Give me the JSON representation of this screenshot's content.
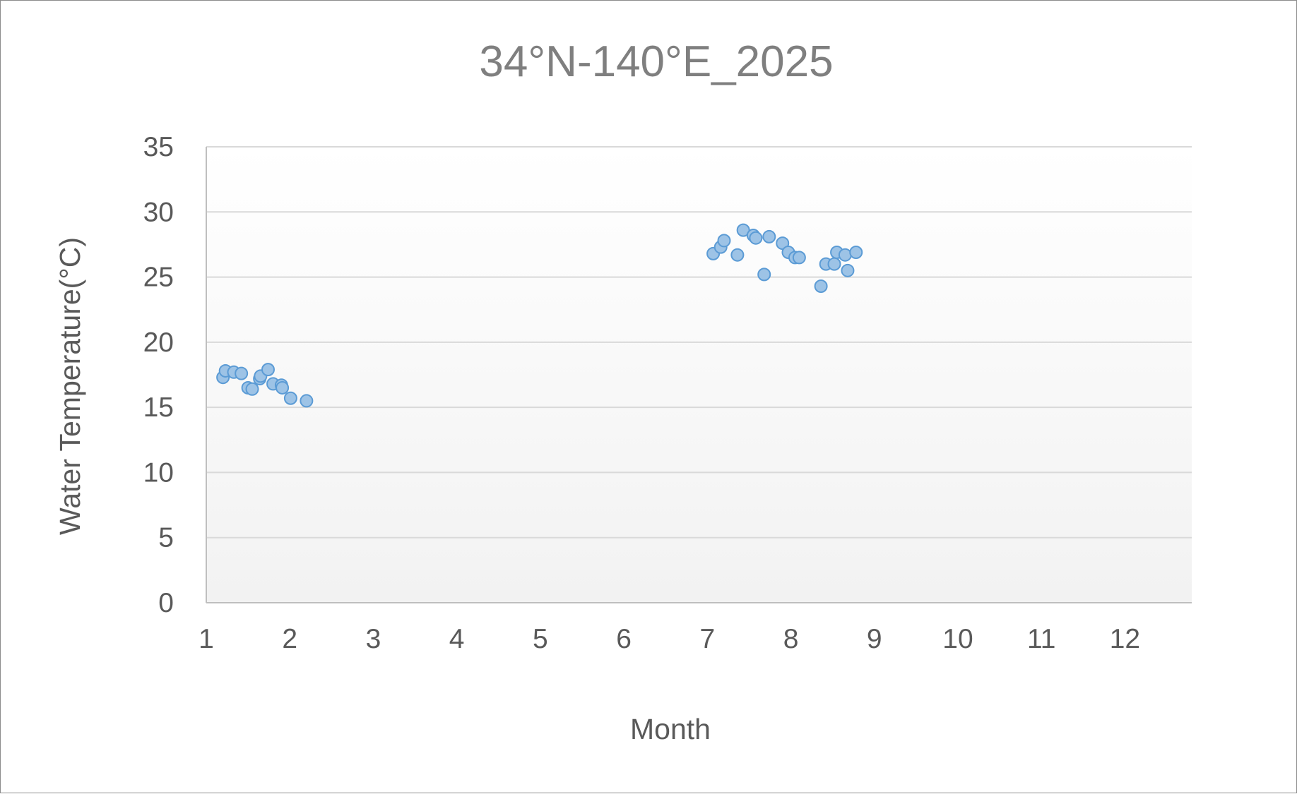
{
  "chart_data": {
    "type": "scatter",
    "title": "34°N-140°E_2025",
    "xlabel": "Month",
    "ylabel": "Water Temperature(°C)",
    "xlim": [
      1,
      12.8
    ],
    "ylim": [
      0,
      35
    ],
    "x_ticks": [
      1,
      2,
      3,
      4,
      5,
      6,
      7,
      8,
      9,
      10,
      11,
      12
    ],
    "y_ticks": [
      0,
      5,
      10,
      15,
      20,
      25,
      30,
      35
    ],
    "grid": true,
    "legend": "none",
    "marker_color": "#9dc3e6",
    "marker_edge_color": "#5b9bd5",
    "series": [
      {
        "x": [
          1.2,
          1.23,
          1.33,
          1.42,
          1.5,
          1.55,
          1.64,
          1.65,
          1.74,
          1.8,
          1.9,
          1.91,
          2.01,
          2.2,
          7.07,
          7.16,
          7.2,
          7.36,
          7.43,
          7.55,
          7.58,
          7.68,
          7.74,
          7.9,
          7.97,
          8.05,
          8.1,
          8.36,
          8.42,
          8.52,
          8.55,
          8.65,
          8.68,
          8.78
        ],
        "y": [
          17.3,
          17.8,
          17.7,
          17.6,
          16.5,
          16.4,
          17.2,
          17.4,
          17.9,
          16.8,
          16.7,
          16.5,
          15.7,
          15.5,
          26.8,
          27.3,
          27.8,
          26.7,
          28.6,
          28.2,
          28.0,
          25.2,
          28.1,
          27.6,
          26.9,
          26.5,
          26.5,
          24.3,
          26.0,
          26.0,
          26.9,
          26.7,
          25.5,
          26.9
        ]
      }
    ]
  }
}
